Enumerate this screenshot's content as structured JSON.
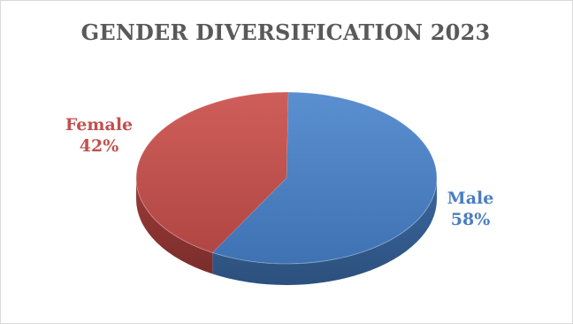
{
  "chart_data": {
    "type": "pie",
    "title": "GENDER DIVERSIFICATION 2023",
    "style": "3d",
    "slices": [
      {
        "label": "Male",
        "value": 58,
        "value_label": "58%",
        "color": "#4a7ebf"
      },
      {
        "label": "Female",
        "value": 42,
        "value_label": "42%",
        "color": "#c0504d"
      }
    ],
    "legend": "none"
  }
}
